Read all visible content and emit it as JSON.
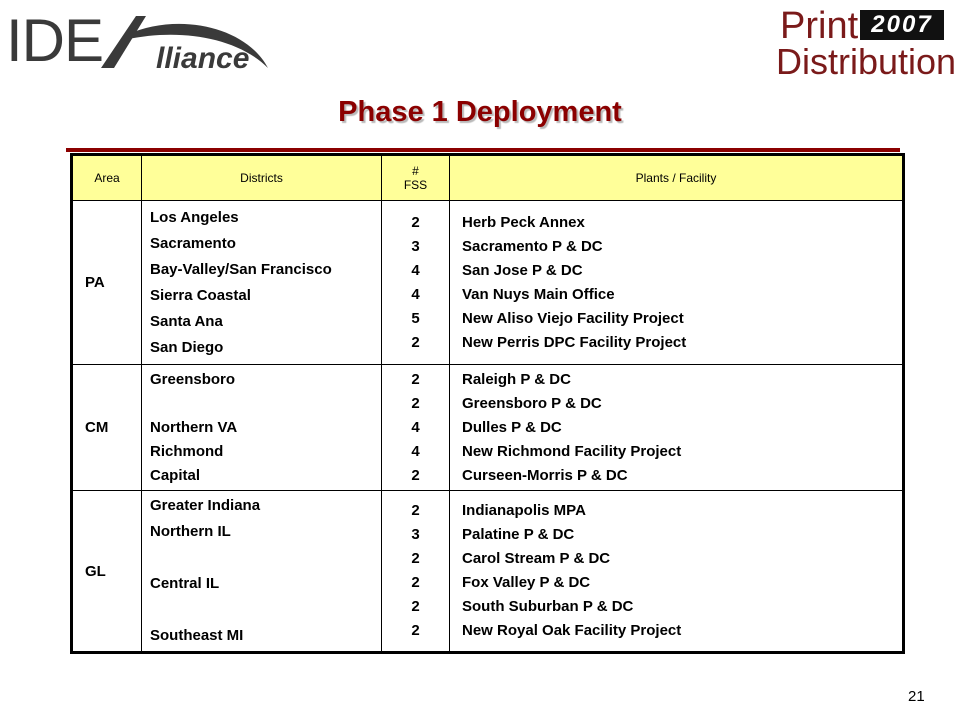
{
  "logos": {
    "left_ide": "IDE",
    "left_alliance": "lliance",
    "right_print": "Print",
    "right_year": "2007",
    "right_distribution": "Distribution"
  },
  "title": "Phase 1 Deployment",
  "table": {
    "headers": {
      "area": "Area",
      "districts": "Districts",
      "fss_line1": "#",
      "fss_line2": "FSS",
      "plants": "Plants / Facility"
    },
    "rows": [
      {
        "area": "PA",
        "districts": [
          "Los Angeles",
          "Sacramento",
          "Bay-Valley/San Francisco",
          "Sierra Coastal",
          "Santa Ana",
          "San Diego"
        ],
        "fss": [
          "2",
          "3",
          "4",
          "4",
          "5",
          "2"
        ],
        "plants": [
          "Herb Peck Annex",
          "Sacramento P & DC",
          "San Jose P & DC",
          "Van Nuys Main Office",
          "New Aliso Viejo Facility Project",
          "New Perris DPC Facility Project"
        ]
      },
      {
        "area": "CM",
        "districts": [
          "Greensboro",
          "",
          "Northern VA",
          "Richmond",
          "Capital"
        ],
        "fss": [
          "2",
          "2",
          "4",
          "4",
          "2"
        ],
        "plants": [
          "Raleigh P & DC",
          "Greensboro P & DC",
          "Dulles P & DC",
          "New Richmond Facility Project",
          "Curseen-Morris P & DC"
        ]
      },
      {
        "area": "GL",
        "districts": [
          "Greater Indiana",
          "Northern IL",
          "",
          "Central IL",
          "",
          "Southeast MI"
        ],
        "fss": [
          "2",
          "3",
          "2",
          "2",
          "2",
          "2"
        ],
        "plants": [
          "Indianapolis MPA",
          "Palatine P & DC",
          "Carol Stream P & DC",
          "Fox Valley P & DC",
          "South Suburban P & DC",
          "New Royal Oak Facility Project"
        ]
      }
    ]
  },
  "page_number": "21",
  "colors": {
    "title": "#8b0000",
    "header_bg": "#ffff99",
    "rule": "#8b0000"
  }
}
